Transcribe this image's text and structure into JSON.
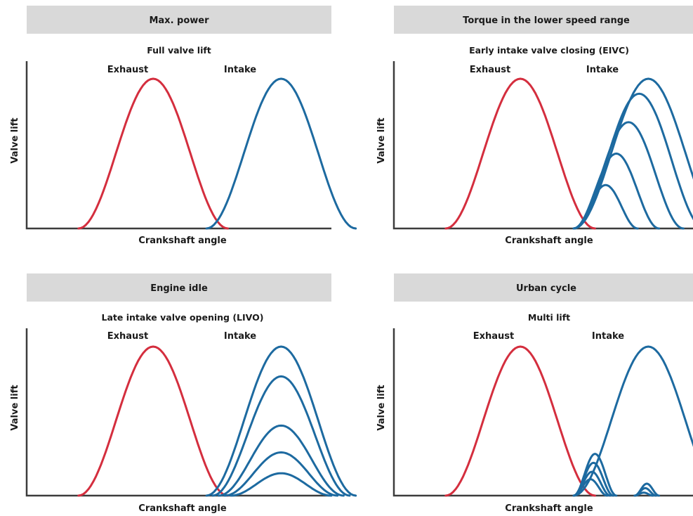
{
  "colors": {
    "exhaust": "#d42e3e",
    "intake": "#1d6aa0",
    "header_bg": "#d9d9d9",
    "axis": "#3c3c3c"
  },
  "chart_data": [
    {
      "type": "line",
      "title": "Max. power",
      "subtitle": "Full valve lift",
      "xlabel": "Crankshaft angle",
      "ylabel": "Valve lift",
      "exhaust_label": "Exhaust",
      "intake_label": "Intake",
      "xlim": [
        0,
        100
      ],
      "ylim": [
        0,
        100
      ],
      "series": [
        {
          "name": "Exhaust",
          "role": "exhaust",
          "curves": [
            {
              "start": 17,
              "end": 66,
              "peak": 100
            }
          ]
        },
        {
          "name": "Intake",
          "role": "intake",
          "curves": [
            {
              "start": 59,
              "end": 108,
              "peak": 100
            }
          ]
        }
      ]
    },
    {
      "type": "line",
      "title": "Torque in the lower speed range",
      "subtitle": "Early intake valve closing (EIVC)",
      "xlabel": "Crankshaft angle",
      "ylabel": "Valve lift",
      "exhaust_label": "Exhaust",
      "intake_label": "Intake",
      "xlim": [
        0,
        100
      ],
      "ylim": [
        0,
        100
      ],
      "series": [
        {
          "name": "Exhaust",
          "role": "exhaust",
          "curves": [
            {
              "start": 17,
              "end": 66,
              "peak": 100
            }
          ]
        },
        {
          "name": "Intake",
          "role": "intake",
          "curves": [
            {
              "start": 59,
              "end": 108,
              "peak": 100
            },
            {
              "start": 59,
              "end": 102,
              "peak": 90
            },
            {
              "start": 59,
              "end": 95,
              "peak": 71
            },
            {
              "start": 59,
              "end": 87,
              "peak": 50
            },
            {
              "start": 59,
              "end": 80,
              "peak": 29
            }
          ]
        }
      ]
    },
    {
      "type": "line",
      "title": "Engine idle",
      "subtitle": "Late intake valve opening (LIVO)",
      "xlabel": "Crankshaft angle",
      "ylabel": "Valve lift",
      "exhaust_label": "Exhaust",
      "intake_label": "Intake",
      "xlim": [
        0,
        100
      ],
      "ylim": [
        0,
        100
      ],
      "series": [
        {
          "name": "Exhaust",
          "role": "exhaust",
          "curves": [
            {
              "start": 17,
              "end": 66,
              "peak": 100
            }
          ]
        },
        {
          "name": "Intake",
          "role": "intake",
          "curves": [
            {
              "start": 59,
              "end": 108,
              "peak": 100
            },
            {
              "start": 61,
              "end": 106,
              "peak": 80
            },
            {
              "start": 63,
              "end": 104,
              "peak": 47
            },
            {
              "start": 65,
              "end": 102,
              "peak": 29
            },
            {
              "start": 67,
              "end": 100,
              "peak": 15
            }
          ]
        }
      ]
    },
    {
      "type": "line",
      "title": "Urban cycle",
      "subtitle": "Multi lift",
      "xlabel": "Crankshaft angle",
      "ylabel": "Valve lift",
      "exhaust_label": "Exhaust",
      "intake_label": "Intake",
      "xlim": [
        0,
        100
      ],
      "ylim": [
        0,
        100
      ],
      "series": [
        {
          "name": "Exhaust",
          "role": "exhaust",
          "curves": [
            {
              "start": 17,
              "end": 66,
              "peak": 100
            }
          ]
        },
        {
          "name": "Intake",
          "role": "intake",
          "curves": [
            {
              "start": 59,
              "end": 108,
              "peak": 100
            },
            {
              "start": 59,
              "end": 73,
              "peak": 28
            },
            {
              "start": 59,
              "end": 72,
              "peak": 22
            },
            {
              "start": 59,
              "end": 71,
              "peak": 16
            },
            {
              "start": 59,
              "end": 70,
              "peak": 11
            },
            {
              "start": 79,
              "end": 87,
              "peak": 8
            },
            {
              "start": 79,
              "end": 86,
              "peak": 5
            },
            {
              "start": 79,
              "end": 85,
              "peak": 2
            }
          ]
        }
      ]
    }
  ]
}
